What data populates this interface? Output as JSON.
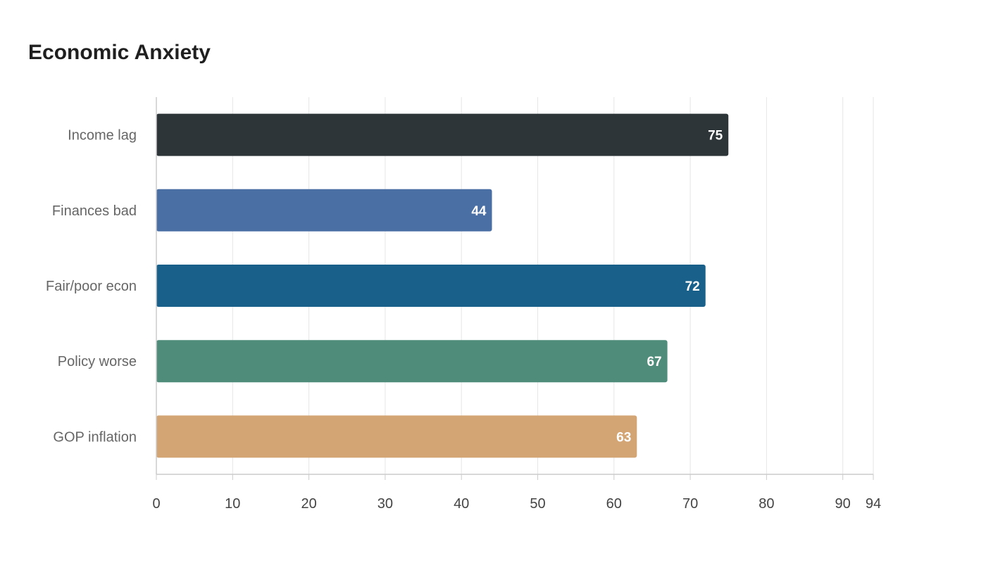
{
  "chart_data": {
    "type": "bar",
    "orientation": "horizontal",
    "title": "Economic Anxiety",
    "categories": [
      "Income lag",
      "Finances bad",
      "Fair/poor econ",
      "Policy worse",
      "GOP inflation"
    ],
    "values": [
      75,
      44,
      72,
      67,
      63
    ],
    "colors": [
      "#2e3538",
      "#4a6fa5",
      "#19618a",
      "#4f8c7a",
      "#d3a574"
    ],
    "xlim": [
      0,
      94
    ],
    "xticks": [
      0,
      10,
      20,
      30,
      40,
      50,
      60,
      70,
      80,
      90,
      94
    ],
    "xlabel": "",
    "ylabel": "",
    "grid": "vertical",
    "legend": "none"
  }
}
